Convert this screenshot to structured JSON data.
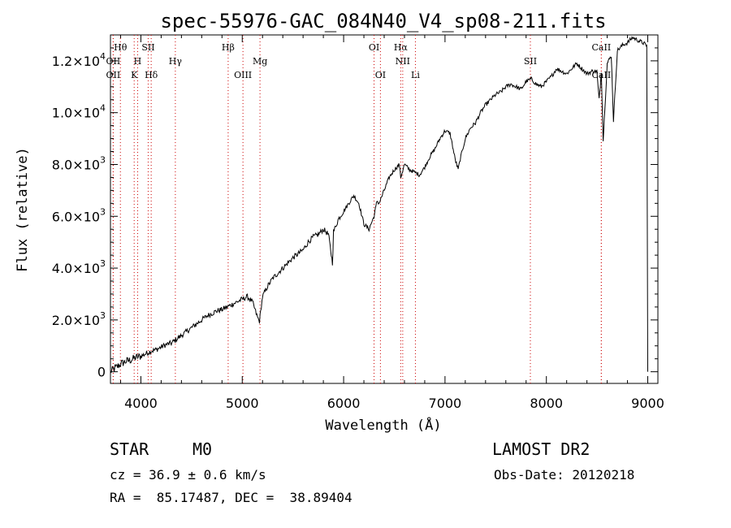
{
  "chart_data": {
    "type": "line",
    "title": "spec-55976-GAC_084N40_V4_sp08-211.fits",
    "xlabel": "Wavelength (Å)",
    "ylabel": "Flux (relative)",
    "xlim": [
      3700,
      9100
    ],
    "ylim": [
      -450,
      13000
    ],
    "x_ticks": [
      4000,
      5000,
      6000,
      7000,
      8000,
      9000
    ],
    "x_tick_labels": [
      "4000",
      "5000",
      "6000",
      "7000",
      "8000",
      "9000"
    ],
    "y_ticks": [
      {
        "value": 0,
        "mantissa": "0",
        "exp": ""
      },
      {
        "value": 2000,
        "mantissa": "2.0×10",
        "exp": "3"
      },
      {
        "value": 4000,
        "mantissa": "4.0×10",
        "exp": "3"
      },
      {
        "value": 6000,
        "mantissa": "6.0×10",
        "exp": "3"
      },
      {
        "value": 8000,
        "mantissa": "8.0×10",
        "exp": "3"
      },
      {
        "value": 10000,
        "mantissa": "1.0×10",
        "exp": "4"
      },
      {
        "value": 12000,
        "mantissa": "1.2×10",
        "exp": "4"
      }
    ],
    "grid": false,
    "series": [
      {
        "color": "#000000",
        "x": [
          3700,
          3750,
          3800,
          3850,
          3900,
          3950,
          4000,
          4050,
          4100,
          4150,
          4200,
          4250,
          4300,
          4350,
          4400,
          4450,
          4500,
          4550,
          4600,
          4650,
          4700,
          4750,
          4800,
          4850,
          4900,
          4950,
          5000,
          5050,
          5100,
          5150,
          5170,
          5200,
          5250,
          5300,
          5350,
          5400,
          5450,
          5500,
          5550,
          5600,
          5650,
          5700,
          5750,
          5800,
          5850,
          5890,
          5900,
          5950,
          6000,
          6050,
          6100,
          6150,
          6200,
          6250,
          6300,
          6330,
          6350,
          6400,
          6450,
          6500,
          6550,
          6563,
          6600,
          6650,
          6700,
          6750,
          6800,
          6850,
          6900,
          6950,
          7000,
          7050,
          7100,
          7130,
          7150,
          7200,
          7250,
          7300,
          7350,
          7400,
          7450,
          7500,
          7550,
          7600,
          7650,
          7700,
          7750,
          7800,
          7850,
          7900,
          7950,
          8000,
          8050,
          8100,
          8150,
          8200,
          8250,
          8300,
          8350,
          8400,
          8450,
          8498,
          8520,
          8542,
          8560,
          8600,
          8640,
          8662,
          8700,
          8750,
          8800,
          8850,
          8900,
          8950,
          8990,
          9000
        ],
        "y": [
          0,
          150,
          300,
          400,
          450,
          550,
          600,
          700,
          800,
          850,
          950,
          1050,
          1100,
          1250,
          1400,
          1550,
          1700,
          1850,
          2000,
          2150,
          2250,
          2350,
          2400,
          2500,
          2600,
          2700,
          2800,
          2900,
          2700,
          2100,
          1950,
          2900,
          3300,
          3600,
          3800,
          4000,
          4200,
          4400,
          4550,
          4700,
          5000,
          5200,
          5300,
          5500,
          5300,
          4200,
          5400,
          5900,
          6200,
          6500,
          6800,
          6500,
          5700,
          5500,
          6000,
          6600,
          6500,
          7000,
          7500,
          7800,
          8000,
          7500,
          8000,
          7800,
          7700,
          7600,
          7900,
          8300,
          8600,
          9000,
          9300,
          9200,
          8200,
          7800,
          8200,
          9000,
          9400,
          9600,
          10000,
          10300,
          10500,
          10700,
          10800,
          11000,
          11100,
          11000,
          10900,
          11200,
          11300,
          11100,
          11000,
          11200,
          11400,
          11700,
          11600,
          11500,
          11700,
          11900,
          11700,
          11500,
          11600,
          11600,
          10500,
          11600,
          8900,
          11900,
          12200,
          9700,
          12400,
          12600,
          12700,
          12900,
          12800,
          12700,
          12600,
          0
        ]
      }
    ],
    "lines": [
      {
        "name": "Hθ",
        "x": 3798,
        "row": 1
      },
      {
        "name": "OII",
        "x": 3727,
        "row": 2
      },
      {
        "name": "OII",
        "x": 3727,
        "row": 3
      },
      {
        "name": "SII",
        "x": 4072,
        "row": 1
      },
      {
        "name": "H",
        "x": 3968,
        "row": 2
      },
      {
        "name": "K",
        "x": 3934,
        "row": 3
      },
      {
        "name": "Hδ",
        "x": 4102,
        "row": 3
      },
      {
        "name": "Hγ",
        "x": 4340,
        "row": 2
      },
      {
        "name": "Hβ",
        "x": 4861,
        "row": 1
      },
      {
        "name": "Mg",
        "x": 5175,
        "row": 2
      },
      {
        "name": "OIII",
        "x": 5007,
        "row": 3
      },
      {
        "name": "OI",
        "x": 6300,
        "row": 1
      },
      {
        "name": "OI",
        "x": 6363,
        "row": 3
      },
      {
        "name": "Hα",
        "x": 6563,
        "row": 1
      },
      {
        "name": "NII",
        "x": 6583,
        "row": 2
      },
      {
        "name": "Li",
        "x": 6708,
        "row": 3
      },
      {
        "name": "SII",
        "x": 7842,
        "row": 2
      },
      {
        "name": "CaII",
        "x": 8542,
        "row": 1
      },
      {
        "name": "CaII",
        "x": 8542,
        "row": 3
      }
    ]
  },
  "info": {
    "object_class": "STAR",
    "subclass": "M0",
    "survey": "LAMOST DR2",
    "cz": "cz = 36.9 ± 0.6 km/s",
    "obs_date": "Obs-Date: 20120218",
    "coords": "RA =  85.17487, DEC =  38.89404"
  }
}
